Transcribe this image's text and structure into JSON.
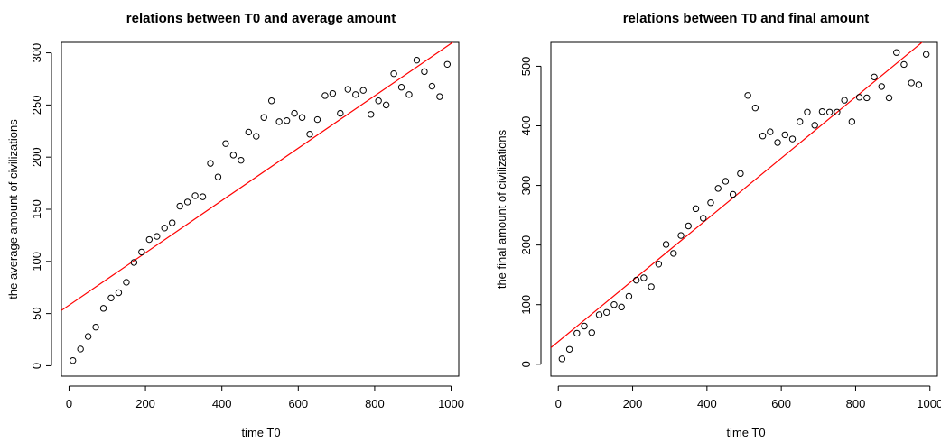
{
  "chart_data": [
    {
      "type": "scatter",
      "title": "relations between T0 and average amount",
      "xlabel": "time T0",
      "ylabel": "the average amount of civilizations",
      "xlim": [
        -20,
        1020
      ],
      "ylim": [
        -10,
        310
      ],
      "xticks": [
        0,
        200,
        400,
        600,
        800,
        1000
      ],
      "yticks": [
        0,
        50,
        100,
        150,
        200,
        250,
        300
      ],
      "points_color": "#000000",
      "x": [
        10,
        30,
        50,
        70,
        90,
        110,
        130,
        150,
        170,
        190,
        210,
        230,
        250,
        270,
        290,
        310,
        330,
        350,
        370,
        390,
        410,
        430,
        450,
        470,
        490,
        510,
        530,
        550,
        570,
        590,
        610,
        630,
        650,
        670,
        690,
        710,
        730,
        750,
        770,
        790,
        810,
        830,
        850,
        870,
        890,
        910,
        930,
        950,
        970,
        990
      ],
      "y": [
        5,
        16,
        28,
        37,
        55,
        65,
        70,
        80,
        99,
        109,
        121,
        124,
        132,
        137,
        153,
        157,
        163,
        162,
        194,
        181,
        213,
        202,
        197,
        224,
        220,
        238,
        254,
        234,
        235,
        242,
        238,
        222,
        236,
        259,
        261,
        242,
        265,
        260,
        264,
        241,
        254,
        250,
        280,
        267,
        260,
        293,
        282,
        268,
        258,
        289
      ],
      "fit_line": {
        "intercept": 58,
        "slope": 0.251,
        "color": "#ff0000"
      }
    },
    {
      "type": "scatter",
      "title": "relations between T0 and final amount",
      "xlabel": "time T0",
      "ylabel": "the final amount of civilizations",
      "xlim": [
        -20,
        1020
      ],
      "ylim": [
        -20,
        540
      ],
      "xticks": [
        0,
        200,
        400,
        600,
        800,
        1000
      ],
      "yticks": [
        0,
        100,
        200,
        300,
        400,
        500
      ],
      "points_color": "#000000",
      "x": [
        10,
        30,
        50,
        70,
        90,
        110,
        130,
        150,
        170,
        190,
        210,
        230,
        250,
        270,
        290,
        310,
        330,
        350,
        370,
        390,
        410,
        430,
        450,
        470,
        490,
        510,
        530,
        550,
        570,
        590,
        610,
        630,
        650,
        670,
        690,
        710,
        730,
        750,
        770,
        790,
        810,
        830,
        850,
        870,
        890,
        910,
        930,
        950,
        970,
        990
      ],
      "y": [
        9,
        25,
        52,
        64,
        53,
        83,
        87,
        100,
        96,
        114,
        141,
        145,
        130,
        168,
        201,
        186,
        216,
        232,
        261,
        245,
        271,
        295,
        307,
        285,
        320,
        451,
        430,
        383,
        390,
        372,
        385,
        378,
        407,
        423,
        401,
        424,
        423,
        423,
        443,
        407,
        448,
        447,
        482,
        466,
        447,
        523,
        503,
        472,
        469,
        520
      ],
      "fit_line": {
        "intercept": 38,
        "slope": 0.513,
        "color": "#ff0000"
      }
    }
  ]
}
